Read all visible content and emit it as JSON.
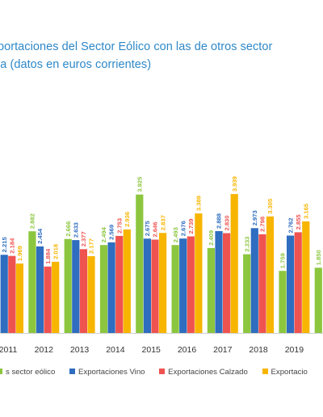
{
  "chart_data": {
    "type": "bar",
    "title_lines": [
      "portaciones del Sector Eólico con las de otros sector",
      "la (datos en euros corrientes)"
    ],
    "categories": [
      "2011",
      "2012",
      "2013",
      "2014",
      "2015",
      "2016",
      "2017",
      "2018",
      "2019"
    ],
    "series": [
      {
        "name": "s sector eólico",
        "color": "#8cc63f",
        "values": [
          null,
          2.882,
          2.666,
          2.494,
          3.925,
          2.493,
          2.409,
          2.233,
          1.759
        ],
        "labels": [
          "",
          "2.882",
          "2.666",
          "2.494",
          "3.925",
          "2.493",
          "2.409",
          "2.233",
          "1.759"
        ]
      },
      {
        "name": "Exportaciones Vino",
        "color": "#2e6dbf",
        "values": [
          2.215,
          2.454,
          2.633,
          2.569,
          2.675,
          2.676,
          2.888,
          2.973,
          2.762
        ],
        "labels": [
          "2.215",
          "2.454",
          "2.633",
          "2.569",
          "2.675",
          "2.676",
          "2.888",
          "2.973",
          "2.762"
        ]
      },
      {
        "name": "Exportaciones Calzado",
        "color": "#ef5350",
        "values": [
          2.184,
          1.884,
          2.377,
          2.753,
          2.646,
          2.739,
          2.83,
          2.798,
          2.855
        ],
        "labels": [
          "2.184",
          "1.884",
          "2.377",
          "2.753",
          "2.646",
          "2.739",
          "2.830",
          "2.798",
          "2.855"
        ]
      },
      {
        "name": "Exportacio",
        "color": "#f7b500",
        "values": [
          1.969,
          2.018,
          2.177,
          2.936,
          2.837,
          3.389,
          3.939,
          3.305,
          3.165
        ],
        "labels": [
          "1.969",
          "2.018",
          "2.177",
          "2.936",
          "2.837",
          "3.389",
          "3.939",
          "3.305",
          "3.165"
        ]
      }
    ],
    "partial_next_value": 1.85,
    "partial_next_label": "1.850",
    "ylim": [
      0,
      4.4
    ],
    "grid": false,
    "legend_position": "bottom",
    "xlabel": "",
    "ylabel": ""
  }
}
